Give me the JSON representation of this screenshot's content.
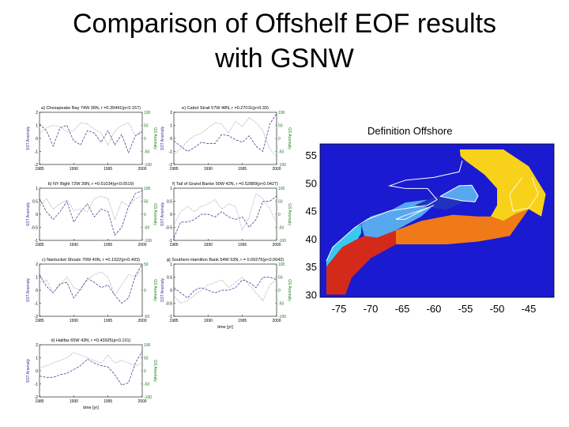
{
  "slide": {
    "title_line1": "Comparison of Offshelf EOF results",
    "title_line2": "with GSNW"
  },
  "chart_data": [
    {
      "type": "line",
      "title": "a) Chesapeake Bay  74W 36N, r =0.39441(p<0.157)",
      "x": [
        1985,
        1986,
        1987,
        1988,
        1989,
        1990,
        1991,
        1992,
        1993,
        1994,
        1995,
        1996,
        1997,
        1998,
        1999,
        2000
      ],
      "xlim": [
        1985,
        2000
      ],
      "xticks": [
        1985,
        1990,
        1995,
        2000
      ],
      "ylabel": "SST Anomaly",
      "ylabel_right": "GS Anomaly",
      "ylim": [
        -2,
        2
      ],
      "yticks": [
        -2,
        -1,
        0,
        1,
        2
      ],
      "ylim_right": [
        -100,
        100
      ],
      "yticks_right": [
        -100,
        -50,
        0,
        50,
        100
      ],
      "series": [
        {
          "axis": "left",
          "style": "dashed",
          "color": "#2a2a8a",
          "values": [
            1.1,
            0.6,
            -0.6,
            0.8,
            1.0,
            -0.2,
            -0.5,
            0.6,
            0.4,
            -0.3,
            0.6,
            -0.5,
            0.3,
            -1.1,
            0.2,
            0.5
          ]
        },
        {
          "axis": "right",
          "style": "dotted",
          "color": "#777777",
          "values": [
            20,
            40,
            50,
            45,
            25,
            30,
            60,
            55,
            35,
            20,
            -25,
            30,
            50,
            60,
            10,
            30
          ]
        }
      ]
    },
    {
      "type": "line",
      "title": "e) Cabot Strait  57W 48N, r =0.27011(p<0.33)",
      "x": [
        1985,
        1986,
        1987,
        1988,
        1989,
        1990,
        1991,
        1992,
        1993,
        1994,
        1995,
        1996,
        1997,
        1998,
        1999,
        2000
      ],
      "xlim": [
        1985,
        2000
      ],
      "xticks": [
        1985,
        1990,
        1995,
        2000
      ],
      "ylabel": "SST Anomaly",
      "ylabel_right": "GS Anomaly",
      "ylim": [
        -2,
        2
      ],
      "yticks": [
        -2,
        -1,
        0,
        1,
        2
      ],
      "ylim_right": [
        -100,
        100
      ],
      "yticks_right": [
        -100,
        -50,
        0,
        50,
        100
      ],
      "series": [
        {
          "axis": "left",
          "style": "dashed",
          "color": "#2a2a8a",
          "values": [
            -0.2,
            -0.6,
            -1.0,
            -0.7,
            -0.3,
            -0.4,
            -0.4,
            0.3,
            0.2,
            -0.1,
            -0.3,
            0.2,
            -0.6,
            -1.0,
            1.1,
            1.9
          ]
        },
        {
          "axis": "right",
          "style": "dotted",
          "color": "#777777",
          "values": [
            -60,
            -40,
            -10,
            10,
            20,
            40,
            60,
            55,
            20,
            65,
            45,
            80,
            60,
            30,
            -40,
            -70
          ]
        }
      ]
    },
    {
      "type": "line",
      "title": "b) NY Bight  72W 39N, r =0.51034(p<0.0519)",
      "x": [
        1985,
        1986,
        1987,
        1988,
        1989,
        1990,
        1991,
        1992,
        1993,
        1994,
        1995,
        1996,
        1997,
        1998,
        1999,
        2000
      ],
      "xlim": [
        1985,
        2000
      ],
      "xticks": [
        1985,
        1990,
        1995,
        2000
      ],
      "ylabel": "SST Anomaly",
      "ylabel_right": "GS Anomaly",
      "ylim": [
        -1,
        1
      ],
      "yticks": [
        -1,
        -0.5,
        0,
        0.5,
        1
      ],
      "ylim_right": [
        -100,
        100
      ],
      "yticks_right": [
        -100,
        -50,
        0,
        50,
        100
      ],
      "series": [
        {
          "axis": "left",
          "style": "dashed",
          "color": "#2a2a8a",
          "values": [
            0.6,
            0.1,
            -0.2,
            0.1,
            0.5,
            -0.3,
            0.1,
            0.4,
            -0.1,
            0.2,
            0.1,
            -0.8,
            -0.5,
            0.3,
            0.8,
            0.9
          ]
        },
        {
          "axis": "right",
          "style": "dotted",
          "color": "#777777",
          "values": [
            30,
            60,
            20,
            40,
            55,
            15,
            20,
            10,
            60,
            70,
            60,
            -20,
            50,
            30,
            60,
            70
          ]
        }
      ]
    },
    {
      "type": "line",
      "title": "f) Tail of Grand Banke  50W 42N, r =0.52889(p<0.0427)",
      "x": [
        1985,
        1986,
        1987,
        1988,
        1989,
        1990,
        1991,
        1992,
        1993,
        1994,
        1995,
        1996,
        1997,
        1998,
        1999,
        2000
      ],
      "xlim": [
        1985,
        2000
      ],
      "xticks": [
        1985,
        1990,
        1995,
        2000
      ],
      "ylabel": "SST Anomaly",
      "ylabel_right": "GS Anomaly",
      "ylim": [
        -1,
        1
      ],
      "yticks": [
        -1,
        -0.5,
        0,
        0.5,
        1
      ],
      "ylim_right": [
        -100,
        100
      ],
      "yticks_right": [
        -100,
        -50,
        0,
        50,
        100
      ],
      "series": [
        {
          "axis": "left",
          "style": "dashed",
          "color": "#2a2a8a",
          "values": [
            -0.9,
            -0.3,
            -0.3,
            -0.2,
            0.0,
            0.0,
            -0.1,
            0.1,
            -0.1,
            -0.2,
            -0.1,
            -0.5,
            -0.2,
            0.5,
            0.5,
            0.7
          ]
        },
        {
          "axis": "right",
          "style": "dotted",
          "color": "#777777",
          "values": [
            -40,
            10,
            30,
            10,
            30,
            40,
            55,
            20,
            40,
            30,
            -60,
            -10,
            80,
            60,
            20,
            -30
          ]
        }
      ]
    },
    {
      "type": "line",
      "title": "c) Nantucket Shoals  70W 40N, r =0.1922(p<0.493)",
      "x": [
        1985,
        1986,
        1987,
        1988,
        1989,
        1990,
        1991,
        1992,
        1993,
        1994,
        1995,
        1996,
        1997,
        1998,
        1999,
        2000
      ],
      "xlim": [
        1985,
        2000
      ],
      "xticks": [
        1985,
        1990,
        1995,
        2000
      ],
      "ylabel": "SST Anomaly",
      "ylabel_right": "GS Anomaly",
      "ylim": [
        -2,
        2
      ],
      "yticks": [
        -2,
        -1,
        0,
        1,
        2
      ],
      "ylim_right": [
        -50,
        50
      ],
      "yticks_right": [
        -50,
        0,
        50
      ],
      "series": [
        {
          "axis": "left",
          "style": "dashed",
          "color": "#2a2a8a",
          "values": [
            1.2,
            0.3,
            -0.2,
            0.5,
            0.6,
            -0.6,
            0.1,
            0.9,
            0.6,
            0.2,
            0.4,
            -0.4,
            -1.0,
            -0.6,
            1.1,
            2.0
          ]
        },
        {
          "axis": "right",
          "style": "dotted",
          "color": "#777777",
          "values": [
            15,
            20,
            -5,
            10,
            25,
            5,
            0,
            20,
            30,
            35,
            25,
            -10,
            10,
            30,
            25,
            40
          ]
        }
      ]
    },
    {
      "type": "line",
      "title": "g) Southern Hamilton Bank  54W 53N, r = 0.69275(p<0.0042)",
      "x": [
        1985,
        1986,
        1987,
        1988,
        1989,
        1990,
        1991,
        1992,
        1993,
        1994,
        1995,
        1996,
        1997,
        1998,
        1999,
        2000
      ],
      "xlim": [
        1985,
        2000
      ],
      "xticks": [
        1985,
        1990,
        1995,
        2000
      ],
      "xlabel": "time [yr]",
      "ylabel": "SST Anomaly",
      "ylabel_right": "GS Anomaly",
      "ylim": [
        -1,
        1
      ],
      "yticks": [
        -1,
        -0.5,
        0,
        0.5,
        1
      ],
      "ylim_right": [
        -100,
        100
      ],
      "yticks_right": [
        -100,
        -50,
        0,
        50,
        100
      ],
      "series": [
        {
          "axis": "left",
          "style": "dashed",
          "color": "#2a2a8a",
          "values": [
            0.1,
            -0.1,
            -0.3,
            0.0,
            0.1,
            0.0,
            -0.1,
            0.0,
            0.0,
            0.1,
            0.4,
            0.3,
            0.1,
            0.5,
            0.5,
            0.4
          ]
        },
        {
          "axis": "right",
          "style": "dotted",
          "color": "#777777",
          "values": [
            -20,
            -50,
            -40,
            -20,
            0,
            20,
            30,
            40,
            10,
            30,
            50,
            20,
            -10,
            -40,
            20,
            40
          ]
        }
      ]
    },
    {
      "type": "line",
      "title": "d) Halifax  65W 43N, r =0.43925(p<0.101)",
      "x": [
        1985,
        1986,
        1987,
        1988,
        1989,
        1990,
        1991,
        1992,
        1993,
        1994,
        1995,
        1996,
        1997,
        1998,
        1999,
        2000
      ],
      "xlim": [
        1985,
        2000
      ],
      "xticks": [
        1985,
        1990,
        1995,
        2000
      ],
      "xlabel": "time [yr]",
      "ylabel": "SST Anomaly",
      "ylabel_right": "GS Anomaly",
      "ylim": [
        -2,
        2
      ],
      "yticks": [
        -2,
        -1,
        0,
        1,
        2
      ],
      "ylim_right": [
        -100,
        100
      ],
      "yticks_right": [
        -100,
        -50,
        0,
        50,
        100
      ],
      "series": [
        {
          "axis": "left",
          "style": "dashed",
          "color": "#2a2a8a",
          "values": [
            -0.4,
            -0.5,
            -0.5,
            -0.3,
            -0.2,
            0.1,
            0.4,
            0.9,
            0.6,
            0.4,
            0.3,
            -0.3,
            -1.1,
            -0.9,
            0.6,
            1.5
          ]
        },
        {
          "axis": "right",
          "style": "dotted",
          "color": "#777777",
          "values": [
            10,
            20,
            30,
            40,
            50,
            70,
            60,
            50,
            40,
            30,
            60,
            30,
            40,
            30,
            20,
            30
          ]
        }
      ]
    },
    {
      "type": "heatmap",
      "title": "Definition Offshore",
      "xticks": [
        -75,
        -70,
        -65,
        -60,
        -55,
        -50,
        -45
      ],
      "yticks": [
        30,
        35,
        40,
        45,
        50,
        55
      ],
      "xlim": [
        -78,
        -41
      ],
      "ylim": [
        29.5,
        57
      ],
      "colors": {
        "background": "#1a1ad0",
        "red": "#d42a1a",
        "orange": "#f07a18",
        "yellow": "#f8d21a",
        "cyan": "#38c8f0",
        "lightblue": "#58a8f0",
        "coast": "#ffffff"
      }
    }
  ]
}
